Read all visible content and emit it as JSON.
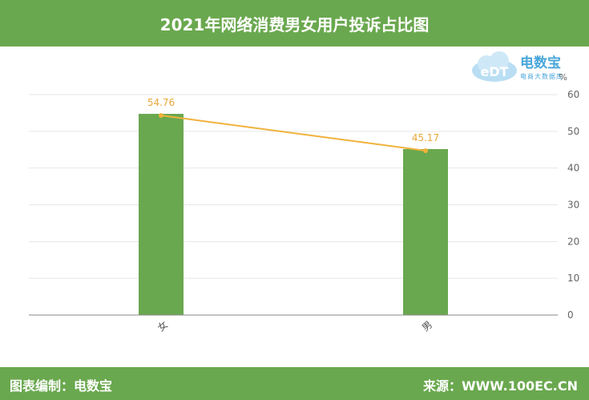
{
  "header": {
    "title": "2021年网络消费男女用户投诉占比图"
  },
  "footer": {
    "left": "图表编制：电数宝",
    "right": "来源：WWW.100EC.CN"
  },
  "logo": {
    "brand": "电数宝",
    "sub": "电商大数据库",
    "mark": "eDT"
  },
  "colors": {
    "bar": "#6aa84f",
    "line": "#f0b23c",
    "label": "#e8a838",
    "header": "#6aa84f"
  },
  "chart_data": {
    "type": "bar",
    "categories": [
      "女",
      "男"
    ],
    "values": [
      54.76,
      45.17
    ],
    "data_labels": [
      "54.76",
      "45.17"
    ],
    "line_overlay": true,
    "yunit": "%",
    "ylim": [
      0,
      60
    ],
    "yticks": [
      0,
      10,
      20,
      30,
      40,
      50,
      60
    ],
    "y_axis_position": "right",
    "grid": true
  }
}
